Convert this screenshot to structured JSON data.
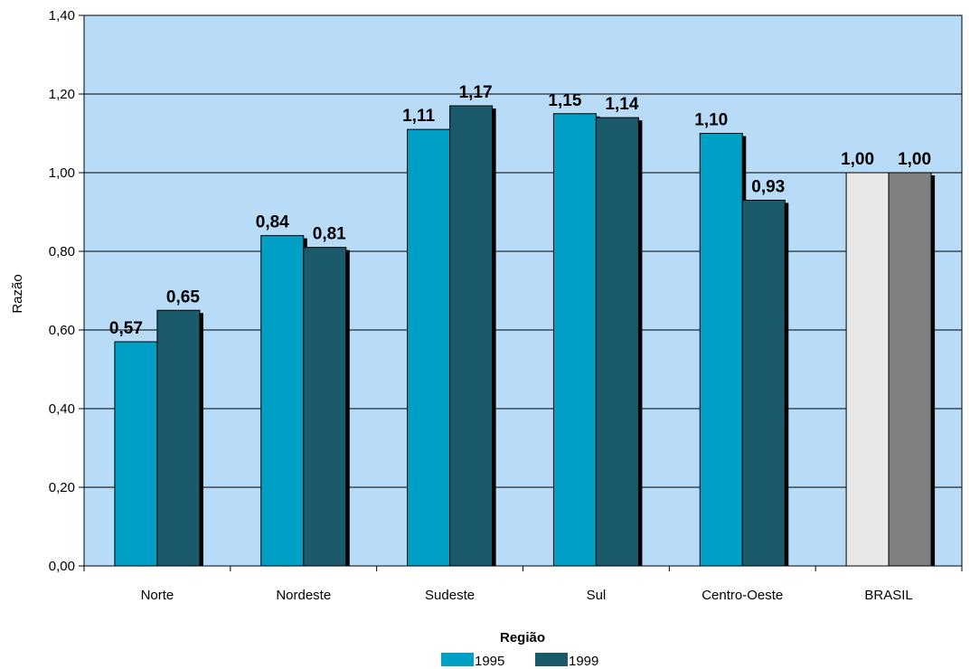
{
  "chart_data": {
    "type": "bar",
    "categories": [
      "Norte",
      "Nordeste",
      "Sudeste",
      "Sul",
      "Centro-Oeste",
      "BRASIL"
    ],
    "series": [
      {
        "name": "1995",
        "values": [
          0.57,
          0.84,
          1.11,
          1.15,
          1.1,
          1.0
        ],
        "labels": [
          "0,57",
          "0,84",
          "1,11",
          "1,15",
          "1,10",
          "1,00"
        ],
        "color": "#00a0c6"
      },
      {
        "name": "1999",
        "values": [
          0.65,
          0.81,
          1.17,
          1.14,
          0.93,
          1.0
        ],
        "labels": [
          "0,65",
          "0,81",
          "1,17",
          "1,14",
          "0,93",
          "1,00"
        ],
        "color": "#1a5a6a"
      }
    ],
    "highlight_colors": {
      "BRASIL_1995": "#e8e8e8",
      "BRASIL_1999": "#808080"
    },
    "xlabel": "Região",
    "ylabel": "Razão",
    "ylim": [
      0,
      1.4
    ],
    "yticks": [
      0,
      0.2,
      0.4,
      0.6,
      0.8,
      1.0,
      1.2,
      1.4
    ],
    "ytick_labels": [
      "0,00",
      "0,20",
      "0,40",
      "0,60",
      "0,80",
      "1,00",
      "1,20",
      "1,40"
    ],
    "plot_background": "#b8dcf8",
    "grid": true,
    "legend": "bottom-center"
  }
}
